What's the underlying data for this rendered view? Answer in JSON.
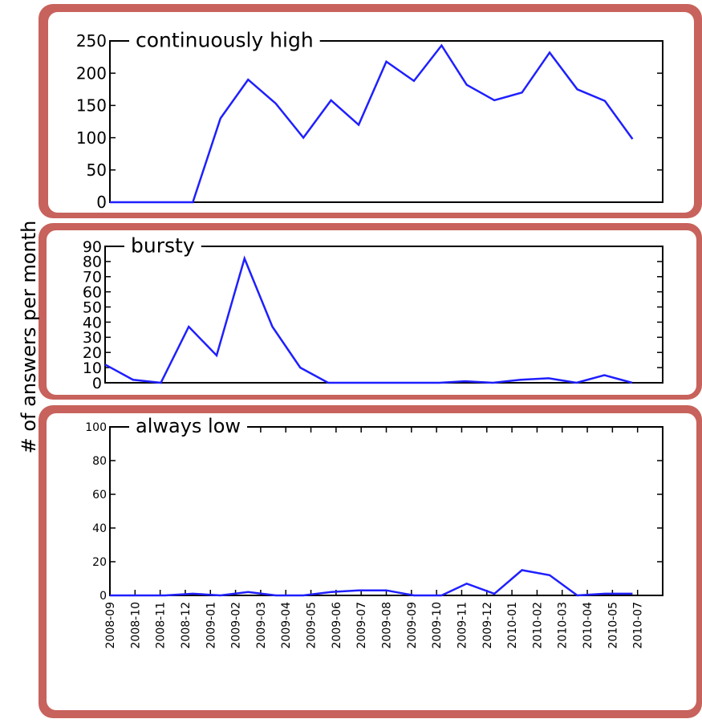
{
  "ylabel": "# of answers per month",
  "chart_data": [
    {
      "type": "line",
      "label": "continuously high",
      "color": "#1f1fff",
      "x": [
        0,
        1.1,
        2.2,
        3.3,
        4.4,
        5.5,
        6.6,
        7.7,
        8.8,
        9.9,
        11,
        12.1,
        13.2,
        14.2,
        15.3,
        16.4,
        17.5,
        18.6,
        19.7,
        20.8
      ],
      "values": [
        0,
        0,
        0,
        0,
        130,
        190,
        153,
        100,
        158,
        120,
        218,
        188,
        243,
        182,
        158,
        170,
        232,
        175,
        157,
        98
      ],
      "xlim": [
        0,
        22
      ],
      "ylim": [
        0,
        250
      ],
      "yticks": [
        0,
        50,
        100,
        150,
        200,
        250
      ]
    },
    {
      "type": "line",
      "label": "bursty",
      "color": "#1f1fff",
      "x": [
        0,
        1.1,
        2.2,
        3.3,
        4.4,
        5.5,
        6.6,
        7.7,
        8.8,
        9.9,
        11,
        12.1,
        13.2,
        14.2,
        15.3,
        16.4,
        17.5,
        18.6,
        19.7,
        20.8
      ],
      "values": [
        12,
        2,
        0,
        37,
        18,
        82,
        37,
        10,
        0,
        0,
        0,
        0,
        0,
        1,
        0,
        2,
        3,
        0,
        5,
        0
      ],
      "xlim": [
        0,
        22
      ],
      "ylim": [
        0,
        90
      ],
      "yticks": [
        0,
        10,
        20,
        30,
        40,
        50,
        60,
        70,
        80,
        90
      ]
    },
    {
      "type": "line",
      "label": "always low",
      "color": "#1f1fff",
      "x": [
        0,
        1.1,
        2.2,
        3.3,
        4.4,
        5.5,
        6.6,
        7.7,
        8.8,
        9.9,
        11,
        12.1,
        13.2,
        14.2,
        15.3,
        16.4,
        17.5,
        18.6,
        19.7,
        20.8
      ],
      "values": [
        0,
        0,
        0,
        1,
        0,
        2,
        0,
        0,
        2,
        3,
        3,
        0,
        0,
        7,
        1,
        15,
        12,
        0,
        1,
        1
      ],
      "xlim": [
        0,
        22
      ],
      "ylim": [
        0,
        100
      ],
      "yticks": [
        0,
        20,
        40,
        60,
        80,
        100
      ],
      "xticks": [
        {
          "value": 0,
          "label": "2008-09"
        },
        {
          "value": 1,
          "label": "2008-10"
        },
        {
          "value": 2,
          "label": "2008-11"
        },
        {
          "value": 3,
          "label": "2008-12"
        },
        {
          "value": 4,
          "label": "2009-01"
        },
        {
          "value": 5,
          "label": "2009-02"
        },
        {
          "value": 6,
          "label": "2009-03"
        },
        {
          "value": 7,
          "label": "2009-04"
        },
        {
          "value": 8,
          "label": "2009-05"
        },
        {
          "value": 9,
          "label": "2009-06"
        },
        {
          "value": 10,
          "label": "2009-07"
        },
        {
          "value": 11,
          "label": "2009-08"
        },
        {
          "value": 12,
          "label": "2009-09"
        },
        {
          "value": 13,
          "label": "2009-10"
        },
        {
          "value": 14,
          "label": "2009-11"
        },
        {
          "value": 15,
          "label": "2009-12"
        },
        {
          "value": 16,
          "label": "2010-01"
        },
        {
          "value": 17,
          "label": "2010-02"
        },
        {
          "value": 18,
          "label": "2010-03"
        },
        {
          "value": 19,
          "label": "2010-04"
        },
        {
          "value": 20,
          "label": "2010-05"
        },
        {
          "value": 21,
          "label": "2010-07"
        }
      ]
    }
  ]
}
